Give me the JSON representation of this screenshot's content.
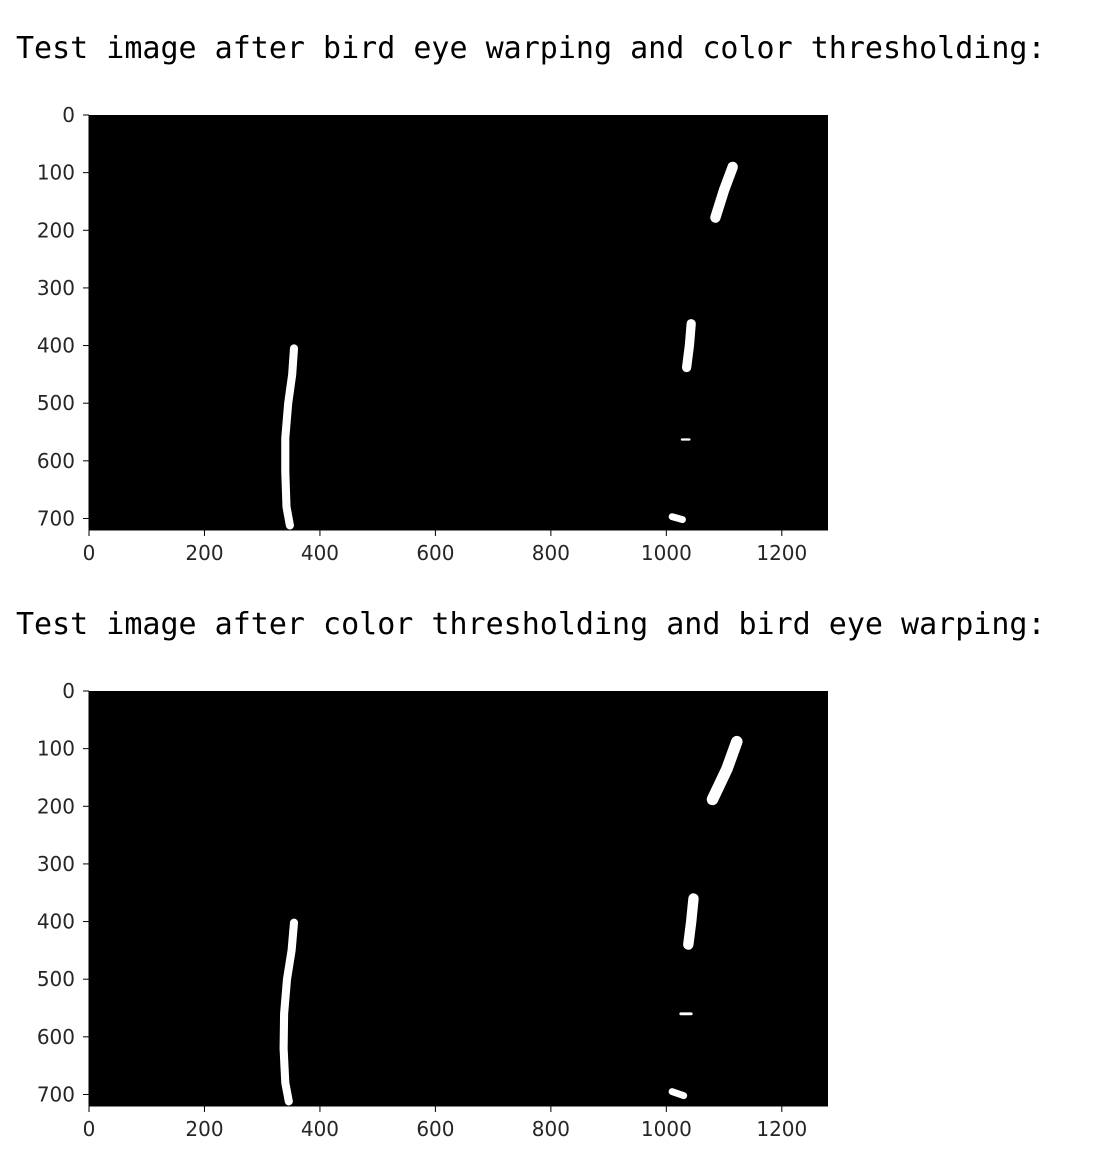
{
  "captions": [
    "Test image after bird eye warping and color thresholding:",
    "Test image after color thresholding and bird eye warping:"
  ],
  "chart_data": [
    {
      "type": "image",
      "title": "",
      "xlabel": "",
      "ylabel": "",
      "xlim": [
        0,
        1280
      ],
      "ylim": [
        720,
        0
      ],
      "xticks": [
        0,
        200,
        400,
        600,
        800,
        1000,
        1200
      ],
      "yticks": [
        0,
        100,
        200,
        300,
        400,
        500,
        600,
        700
      ],
      "grid": false,
      "background_color": "#000000",
      "foreground_color": "#ffffff",
      "lane_pixels": [
        {
          "name": "left-lane",
          "points": [
            [
              355,
              405
            ],
            [
              352,
              450
            ],
            [
              345,
              500
            ],
            [
              340,
              560
            ],
            [
              340,
              620
            ],
            [
              342,
              680
            ],
            [
              348,
              712
            ]
          ],
          "width": 14
        },
        {
          "name": "right-lane-upper",
          "points": [
            [
              1115,
              90
            ],
            [
              1100,
              130
            ],
            [
              1085,
              178
            ]
          ],
          "width": 18
        },
        {
          "name": "right-lane-middle",
          "points": [
            [
              1043,
              362
            ],
            [
              1040,
              400
            ],
            [
              1035,
              438
            ]
          ],
          "width": 16
        },
        {
          "name": "right-lane-dash",
          "points": [
            [
              1027,
              563
            ],
            [
              1040,
              563
            ]
          ],
          "width": 4
        },
        {
          "name": "right-lane-bottom",
          "points": [
            [
              1010,
              697
            ],
            [
              1028,
              702
            ]
          ],
          "width": 12
        }
      ]
    },
    {
      "type": "image",
      "title": "",
      "xlabel": "",
      "ylabel": "",
      "xlim": [
        0,
        1280
      ],
      "ylim": [
        720,
        0
      ],
      "xticks": [
        0,
        200,
        400,
        600,
        800,
        1000,
        1200
      ],
      "yticks": [
        0,
        100,
        200,
        300,
        400,
        500,
        600,
        700
      ],
      "grid": false,
      "background_color": "#000000",
      "foreground_color": "#ffffff",
      "lane_pixels": [
        {
          "name": "left-lane",
          "points": [
            [
              355,
              402
            ],
            [
              351,
              450
            ],
            [
              343,
              500
            ],
            [
              338,
              560
            ],
            [
              337,
              620
            ],
            [
              340,
              680
            ],
            [
              346,
              712
            ]
          ],
          "width": 14
        },
        {
          "name": "right-lane-upper",
          "points": [
            [
              1122,
              88
            ],
            [
              1105,
              135
            ],
            [
              1080,
              188
            ]
          ],
          "width": 20
        },
        {
          "name": "right-lane-middle",
          "points": [
            [
              1047,
              360
            ],
            [
              1043,
              400
            ],
            [
              1038,
              440
            ]
          ],
          "width": 18
        },
        {
          "name": "right-lane-dash",
          "points": [
            [
              1025,
              560
            ],
            [
              1043,
              560
            ]
          ],
          "width": 5
        },
        {
          "name": "right-lane-bottom",
          "points": [
            [
              1010,
              695
            ],
            [
              1030,
              702
            ]
          ],
          "width": 12
        }
      ]
    }
  ]
}
